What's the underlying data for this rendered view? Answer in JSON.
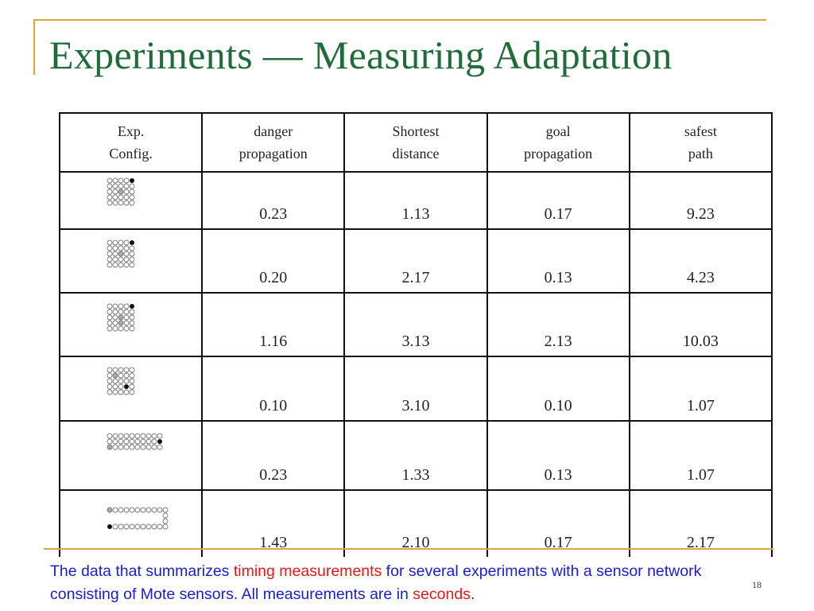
{
  "slide": {
    "title": "Experiments — Measuring Adaptation",
    "page_number": "18"
  },
  "table": {
    "headers": [
      {
        "line1": "Exp.",
        "line2": "Config."
      },
      {
        "line1": "danger",
        "line2": "propagation"
      },
      {
        "line1": "Shortest",
        "line2": "distance"
      },
      {
        "line1": "goal",
        "line2": "propagation"
      },
      {
        "line1": "safest",
        "line2": "path"
      }
    ],
    "rows": [
      {
        "danger_propagation": "0.23",
        "shortest_distance": "1.13",
        "goal_propagation": "0.17",
        "safest_path": "9.23"
      },
      {
        "danger_propagation": "0.20",
        "shortest_distance": "2.17",
        "goal_propagation": "0.13",
        "safest_path": "4.23"
      },
      {
        "danger_propagation": "1.16",
        "shortest_distance": "3.13",
        "goal_propagation": "2.13",
        "safest_path": "10.03"
      },
      {
        "danger_propagation": "0.10",
        "shortest_distance": "3.10",
        "goal_propagation": "0.10",
        "safest_path": "1.07"
      },
      {
        "danger_propagation": "0.23",
        "shortest_distance": "1.33",
        "goal_propagation": "0.13",
        "safest_path": "1.07"
      },
      {
        "danger_propagation": "1.43",
        "shortest_distance": "2.10",
        "goal_propagation": "0.17",
        "safest_path": "2.17"
      }
    ]
  },
  "caption": {
    "part1": "The data that summarizes ",
    "highlight1": "timing measurements",
    "part2": " for several experiments with a sensor network consisting of Mote sensors. All measurements are in ",
    "highlight2": "seconds",
    "part3": "."
  },
  "colors": {
    "title": "#1f6b3a",
    "accent_rule": "#d9a63c",
    "caption_text": "#1c1cc8",
    "caption_highlight": "#e01a1a"
  },
  "icons": [
    "mote-grid-icon"
  ]
}
